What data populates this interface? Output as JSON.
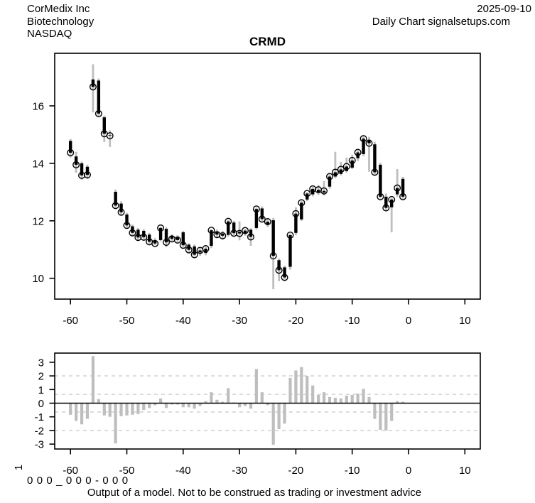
{
  "header": {
    "company": "CorMedix Inc",
    "industry": "Biotechnology",
    "exchange": "NASDAQ",
    "date": "2025-09-10",
    "source": "Daily Chart signalsetups.com"
  },
  "title": "CRMD",
  "bottom": {
    "panel_label": "1",
    "model_digits": "0 0 0 _ 0 0 0 - 0 0 0",
    "disclaimer": "Output of a model. Not to be construed as trading or investment advice"
  },
  "colors": {
    "wick": "#bebebe",
    "body": "#000000",
    "close_ring": "#000000",
    "bar": "#bebebe",
    "dashed_grid": "#cccccc",
    "axis": "#000000",
    "background": "#ffffff"
  },
  "chart_data": [
    {
      "type": "ohlc",
      "title": "CRMD",
      "xlabel": "",
      "ylabel": "",
      "x_ticks": [
        -60,
        -50,
        -40,
        -30,
        -20,
        -10,
        0,
        10
      ],
      "y_ticks": [
        10,
        12,
        14,
        16
      ],
      "xlim": [
        -62.8,
        12.7
      ],
      "ylim": [
        9.28,
        17.83
      ],
      "grid": false,
      "legend": "none",
      "x": [
        -60,
        -59,
        -58,
        -57,
        -56,
        -55,
        -54,
        -53,
        -52,
        -51,
        -50,
        -49,
        -48,
        -47,
        -46,
        -45,
        -44,
        -43,
        -42,
        -41,
        -40,
        -39,
        -38,
        -37,
        -36,
        -35,
        -34,
        -33,
        -32,
        -31,
        -30,
        -29,
        -28,
        -27,
        -26,
        -25,
        -24,
        -23,
        -22,
        -21,
        -20,
        -19,
        -18,
        -17,
        -16,
        -15,
        -14,
        -13,
        -12,
        -11,
        -10,
        -9,
        -8,
        -7,
        -6,
        -5,
        -4,
        -3,
        -2,
        -1
      ],
      "ohlc": [
        [
          14.78,
          14.85,
          14.2,
          14.37
        ],
        [
          14.24,
          14.4,
          13.67,
          13.95
        ],
        [
          14.0,
          14.06,
          13.42,
          13.58
        ],
        [
          13.88,
          13.95,
          13.45,
          13.6
        ],
        [
          16.92,
          17.45,
          15.77,
          16.66
        ],
        [
          16.88,
          16.95,
          15.6,
          15.73
        ],
        [
          15.6,
          15.66,
          14.74,
          15.03
        ],
        [
          14.98,
          15.15,
          14.57,
          14.96
        ],
        [
          13.01,
          13.09,
          12.43,
          12.53
        ],
        [
          12.6,
          12.68,
          12.18,
          12.3
        ],
        [
          12.22,
          12.28,
          11.73,
          11.84
        ],
        [
          11.81,
          11.87,
          11.48,
          11.58
        ],
        [
          11.69,
          11.75,
          11.31,
          11.42
        ],
        [
          11.65,
          11.71,
          11.35,
          11.43
        ],
        [
          11.52,
          11.58,
          11.2,
          11.27
        ],
        [
          11.3,
          11.4,
          11.15,
          11.21
        ],
        [
          11.33,
          11.8,
          11.28,
          11.75
        ],
        [
          11.72,
          11.78,
          11.08,
          11.25
        ],
        [
          11.47,
          11.53,
          11.28,
          11.37
        ],
        [
          11.42,
          11.5,
          11.25,
          11.33
        ],
        [
          11.6,
          11.65,
          11.08,
          11.15
        ],
        [
          11.17,
          11.22,
          10.9,
          10.99
        ],
        [
          11.11,
          11.18,
          10.75,
          10.82
        ],
        [
          10.9,
          11.05,
          10.78,
          10.97
        ],
        [
          10.88,
          11.1,
          10.8,
          11.03
        ],
        [
          11.13,
          11.72,
          11.05,
          11.67
        ],
        [
          11.6,
          11.7,
          11.4,
          11.52
        ],
        [
          11.55,
          11.65,
          11.35,
          11.48
        ],
        [
          11.51,
          12.03,
          11.45,
          11.98
        ],
        [
          11.94,
          12.0,
          11.5,
          11.57
        ],
        [
          11.62,
          11.98,
          11.32,
          11.56
        ],
        [
          11.56,
          11.72,
          11.48,
          11.66
        ],
        [
          11.69,
          11.74,
          11.13,
          11.44
        ],
        [
          11.75,
          12.46,
          11.7,
          12.41
        ],
        [
          12.43,
          12.5,
          11.98,
          12.06
        ],
        [
          11.88,
          12.05,
          11.78,
          11.97
        ],
        [
          12.02,
          12.1,
          9.62,
          10.78
        ],
        [
          10.63,
          10.69,
          9.9,
          10.28
        ],
        [
          10.38,
          10.44,
          9.95,
          10.03
        ],
        [
          10.4,
          11.56,
          10.3,
          11.5
        ],
        [
          11.58,
          12.47,
          11.5,
          12.25
        ],
        [
          12.05,
          12.7,
          12.0,
          12.63
        ],
        [
          12.74,
          13.0,
          12.68,
          12.95
        ],
        [
          12.92,
          13.22,
          12.85,
          13.11
        ],
        [
          13.0,
          13.25,
          12.9,
          13.08
        ],
        [
          12.98,
          13.38,
          12.88,
          13.04
        ],
        [
          13.19,
          13.62,
          13.12,
          13.54
        ],
        [
          13.54,
          14.4,
          13.48,
          13.69
        ],
        [
          13.63,
          14.05,
          13.58,
          13.79
        ],
        [
          13.73,
          14.2,
          13.68,
          13.89
        ],
        [
          13.85,
          14.3,
          13.8,
          14.1
        ],
        [
          14.18,
          14.46,
          14.08,
          14.38
        ],
        [
          14.32,
          14.94,
          14.25,
          14.86
        ],
        [
          14.82,
          14.92,
          13.71,
          14.7
        ],
        [
          14.66,
          14.74,
          13.6,
          13.69
        ],
        [
          13.95,
          14.02,
          12.78,
          12.84
        ],
        [
          12.84,
          12.95,
          12.35,
          12.45
        ],
        [
          12.47,
          12.8,
          11.6,
          12.74
        ],
        [
          12.92,
          13.8,
          12.83,
          13.14
        ],
        [
          13.46,
          13.53,
          12.76,
          12.84
        ]
      ]
    },
    {
      "type": "bar",
      "title": "",
      "xlabel": "",
      "ylabel": "1",
      "x_ticks": [
        -60,
        -50,
        -40,
        -30,
        -20,
        -10,
        0,
        10
      ],
      "y_ticks": [
        -3,
        -2,
        -1,
        0,
        1,
        2,
        3
      ],
      "xlim": [
        -62.8,
        12.7
      ],
      "ylim": [
        -3.36,
        3.67
      ],
      "dashed_hlines": [
        2,
        0.65,
        -0.65,
        -2
      ],
      "solid_hline": 0,
      "x": [
        -60,
        -59,
        -58,
        -57,
        -56,
        -55,
        -54,
        -53,
        -52,
        -51,
        -50,
        -49,
        -48,
        -47,
        -46,
        -45,
        -44,
        -43,
        -42,
        -41,
        -40,
        -39,
        -38,
        -37,
        -36,
        -35,
        -34,
        -33,
        -32,
        -31,
        -30,
        -29,
        -28,
        -27,
        -26,
        -25,
        -24,
        -23,
        -22,
        -21,
        -20,
        -19,
        -18,
        -17,
        -16,
        -15,
        -14,
        -13,
        -12,
        -11,
        -10,
        -9,
        -8,
        -7,
        -6,
        -5,
        -4,
        -3,
        -2,
        -1
      ],
      "values": [
        -0.85,
        -1.3,
        -1.55,
        -1.15,
        3.45,
        0.3,
        -0.9,
        -1.0,
        -2.95,
        -0.95,
        -0.9,
        -0.85,
        -0.8,
        -0.5,
        -0.35,
        -0.15,
        0.35,
        -0.35,
        -0.1,
        -0.1,
        -0.3,
        -0.3,
        -0.4,
        -0.2,
        0.15,
        0.8,
        0.25,
        0.1,
        1.1,
        0.05,
        -0.3,
        -0.2,
        -0.4,
        2.5,
        0.8,
        -0.15,
        -3.05,
        -1.9,
        -1.5,
        1.85,
        2.4,
        2.65,
        2.0,
        1.3,
        0.6,
        0.8,
        0.45,
        0.4,
        0.35,
        0.55,
        0.6,
        0.7,
        1.05,
        0.45,
        -1.15,
        -1.95,
        -2.0,
        -1.3,
        0.15,
        0.1
      ]
    }
  ]
}
